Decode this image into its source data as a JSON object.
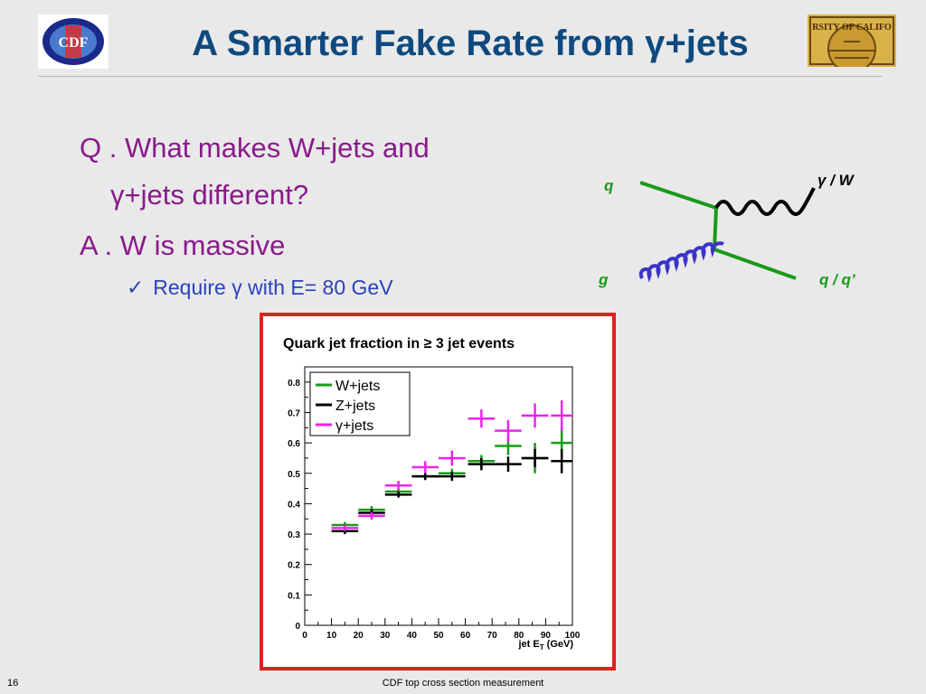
{
  "header": {
    "title": "A Smarter Fake Rate from γ+jets",
    "left_logo_text": "CDF",
    "right_logo_text": "RSITY OF CALIFO"
  },
  "bullets": {
    "q_line1": "Q . What makes W+jets and",
    "q_line2": "γ+jets different?",
    "a_line": "A . W is massive",
    "sub_check": "✓",
    "sub_text": "Require γ with E= 80 GeV"
  },
  "feynman": {
    "label_q": "q",
    "label_g": "g",
    "label_boson": "γ / W",
    "label_outq": "q / q’",
    "color_lines": "#1a9a1a",
    "color_photon": "#000000",
    "color_gluon": "#3a34c8"
  },
  "chart_data": {
    "type": "scatter",
    "title": "Quark jet fraction in ≥ 3 jet events",
    "xlabel": "jet E",
    "xlabel_sub": "T",
    "xlabel_unit": " (GeV)",
    "ylabel": "",
    "xlim": [
      0,
      100
    ],
    "ylim": [
      0,
      0.85
    ],
    "xticks": [
      0,
      10,
      20,
      30,
      40,
      50,
      60,
      70,
      80,
      90,
      100
    ],
    "yticks": [
      0,
      0.1,
      0.2,
      0.3,
      0.4,
      0.5,
      0.6,
      0.7,
      0.8
    ],
    "ytick_labels": [
      "0",
      "0.1",
      "0.2",
      "0.3",
      "0.4",
      "0.5",
      "0.6",
      "0.7",
      "0.8"
    ],
    "legend_position": "top-left",
    "series": [
      {
        "name": "W+jets",
        "color": "#1a9a1a",
        "points": [
          {
            "x": 15,
            "y": 0.33,
            "xerr": 5,
            "yerr": 0.01
          },
          {
            "x": 25,
            "y": 0.38,
            "xerr": 5,
            "yerr": 0.012
          },
          {
            "x": 35,
            "y": 0.44,
            "xerr": 5,
            "yerr": 0.01
          },
          {
            "x": 45,
            "y": 0.49,
            "xerr": 5,
            "yerr": 0.012
          },
          {
            "x": 55,
            "y": 0.5,
            "xerr": 5,
            "yerr": 0.015
          },
          {
            "x": 66,
            "y": 0.54,
            "xerr": 5,
            "yerr": 0.02
          },
          {
            "x": 76,
            "y": 0.59,
            "xerr": 5,
            "yerr": 0.03
          },
          {
            "x": 86,
            "y": 0.55,
            "xerr": 5,
            "yerr": 0.05
          },
          {
            "x": 96,
            "y": 0.6,
            "xerr": 4,
            "yerr": 0.05
          }
        ]
      },
      {
        "name": "Z+jets",
        "color": "#000000",
        "points": [
          {
            "x": 15,
            "y": 0.31,
            "xerr": 5,
            "yerr": 0.01
          },
          {
            "x": 25,
            "y": 0.37,
            "xerr": 5,
            "yerr": 0.012
          },
          {
            "x": 35,
            "y": 0.43,
            "xerr": 5,
            "yerr": 0.01
          },
          {
            "x": 45,
            "y": 0.49,
            "xerr": 5,
            "yerr": 0.012
          },
          {
            "x": 55,
            "y": 0.49,
            "xerr": 5,
            "yerr": 0.015
          },
          {
            "x": 66,
            "y": 0.53,
            "xerr": 5,
            "yerr": 0.02
          },
          {
            "x": 76,
            "y": 0.53,
            "xerr": 5,
            "yerr": 0.025
          },
          {
            "x": 86,
            "y": 0.55,
            "xerr": 5,
            "yerr": 0.03
          },
          {
            "x": 96,
            "y": 0.54,
            "xerr": 4,
            "yerr": 0.04
          }
        ]
      },
      {
        "name": "γ+jets",
        "color": "#ee22ee",
        "points": [
          {
            "x": 15,
            "y": 0.32,
            "xerr": 5,
            "yerr": 0.01
          },
          {
            "x": 25,
            "y": 0.36,
            "xerr": 5,
            "yerr": 0.012
          },
          {
            "x": 35,
            "y": 0.46,
            "xerr": 5,
            "yerr": 0.015
          },
          {
            "x": 45,
            "y": 0.52,
            "xerr": 5,
            "yerr": 0.02
          },
          {
            "x": 55,
            "y": 0.55,
            "xerr": 5,
            "yerr": 0.025
          },
          {
            "x": 66,
            "y": 0.68,
            "xerr": 5,
            "yerr": 0.03
          },
          {
            "x": 76,
            "y": 0.64,
            "xerr": 5,
            "yerr": 0.035
          },
          {
            "x": 86,
            "y": 0.69,
            "xerr": 5,
            "yerr": 0.04
          },
          {
            "x": 96,
            "y": 0.69,
            "xerr": 4,
            "yerr": 0.05
          }
        ]
      }
    ]
  },
  "footer": {
    "page_number": "16",
    "text": "CDF top cross section measurement"
  }
}
